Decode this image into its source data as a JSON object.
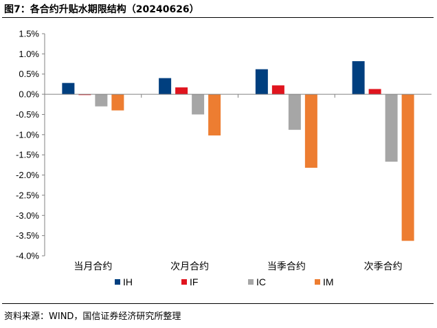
{
  "title": "图7：各合约升贴水期限结构（20240626）",
  "source": "资料来源：WIND，国信证券经济研究所整理",
  "chart_data": {
    "type": "bar",
    "title": "图7：各合约升贴水期限结构（20240626）",
    "xlabel": "",
    "ylabel": "",
    "categories": [
      "当月合约",
      "次月合约",
      "当季合约",
      "次季合约"
    ],
    "series": [
      {
        "name": "IH",
        "color": "#003f7f",
        "values": [
          0.28,
          0.4,
          0.62,
          0.82
        ]
      },
      {
        "name": "IF",
        "color": "#e0141e",
        "values": [
          -0.02,
          0.17,
          0.22,
          0.13
        ]
      },
      {
        "name": "IC",
        "color": "#a6a6a6",
        "values": [
          -0.3,
          -0.5,
          -0.88,
          -1.67
        ]
      },
      {
        "name": "IM",
        "color": "#ed7d31",
        "values": [
          -0.4,
          -1.02,
          -1.82,
          -3.63
        ]
      }
    ],
    "ylim": [
      -4.0,
      1.5
    ],
    "yticks": [
      1.5,
      1.0,
      0.5,
      0.0,
      -0.5,
      -1.0,
      -1.5,
      -2.0,
      -2.5,
      -3.0,
      -3.5,
      -4.0
    ],
    "ytick_labels": [
      "1.5%",
      "1.0%",
      "0.5%",
      "0.0%",
      "-0.5%",
      "-1.0%",
      "-1.5%",
      "-2.0%",
      "-2.5%",
      "-3.0%",
      "-3.5%",
      "-4.0%"
    ],
    "grid": false,
    "legend": "bottom"
  }
}
